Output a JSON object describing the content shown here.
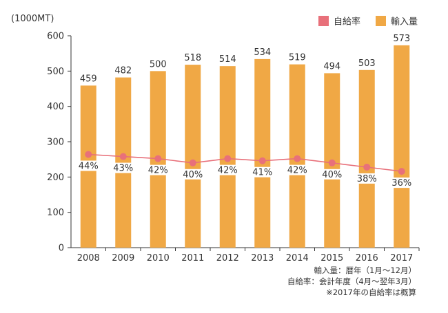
{
  "chart_data": {
    "type": "bar",
    "unit_label": "(1000MT)",
    "categories": [
      "2008",
      "2009",
      "2010",
      "2011",
      "2012",
      "2013",
      "2014",
      "2015",
      "2016",
      "2017"
    ],
    "series": [
      {
        "name": "輸入量",
        "type": "bar",
        "axis": "left",
        "color": "#f0a845",
        "values": [
          459,
          482,
          500,
          518,
          514,
          534,
          519,
          494,
          503,
          573
        ],
        "labels": [
          "459",
          "482",
          "500",
          "518",
          "514",
          "534",
          "519",
          "494",
          "503",
          "573"
        ]
      },
      {
        "name": "自給率",
        "type": "line",
        "color": "#e8707a",
        "values": [
          44,
          43,
          42,
          40,
          42,
          41,
          42,
          40,
          38,
          36
        ],
        "labels": [
          "44%",
          "43%",
          "42%",
          "40%",
          "42%",
          "41%",
          "42%",
          "40%",
          "38%",
          "36%"
        ]
      }
    ],
    "ylim": [
      0,
      600
    ],
    "yticks": [
      "0",
      "100",
      "200",
      "300",
      "400",
      "500",
      "600"
    ],
    "legend_position": "top-right",
    "grid": false
  },
  "notes": [
    "輸入量：暦年（1月〜12月）",
    "自給率：会計年度（4月〜翌年3月）",
    "※2017年の自給率は概算"
  ]
}
